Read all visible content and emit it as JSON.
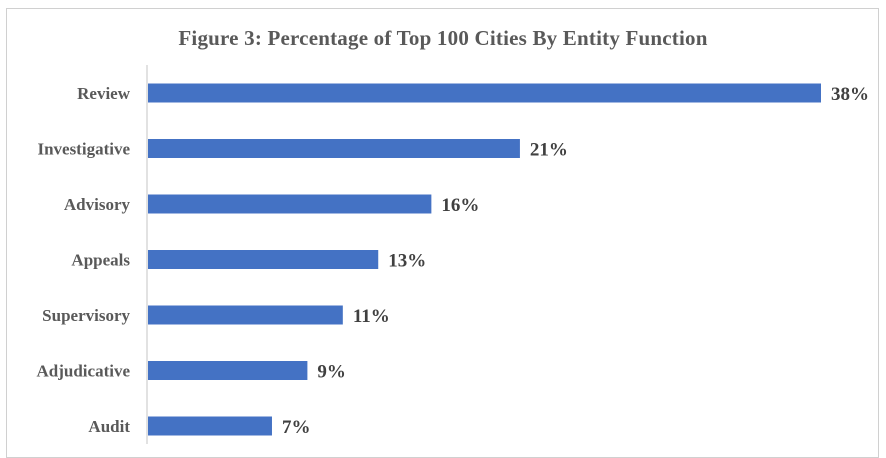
{
  "chart_data": {
    "type": "bar",
    "orientation": "horizontal",
    "title": "Figure 3: Percentage of Top 100 Cities By Entity Function",
    "categories": [
      "Review",
      "Investigative",
      "Advisory",
      "Appeals",
      "Supervisory",
      "Adjudicative",
      "Audit"
    ],
    "values": [
      38,
      21,
      16,
      13,
      11,
      9,
      7
    ],
    "value_labels": [
      "38%",
      "21%",
      "16%",
      "13%",
      "11%",
      "9%",
      "7%"
    ],
    "unit": "%",
    "xlabel": "",
    "ylabel": "",
    "xlim": [
      0,
      38
    ],
    "grid": false,
    "legend": "none",
    "bar_color": "#4472C4",
    "axis_color": "#d9d9d9",
    "label_color": "#595959"
  }
}
